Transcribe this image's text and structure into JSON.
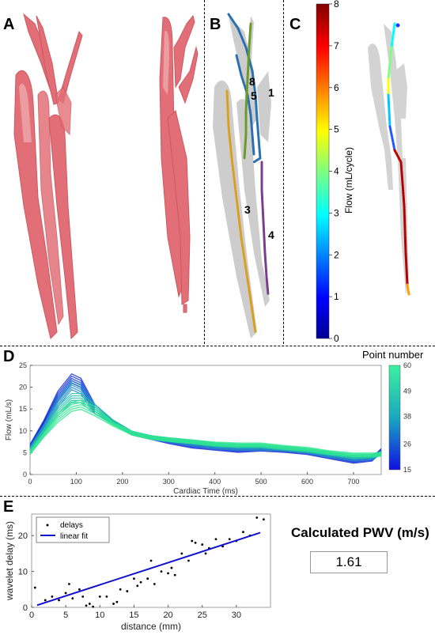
{
  "panels": {
    "a": "A",
    "b": "B",
    "c": "C",
    "d": "D",
    "e": "E"
  },
  "vessel_point_labels": [
    "8",
    "5",
    "1",
    "3",
    "4"
  ],
  "colorbar_flow": {
    "label": "Flow (mL/cycle)",
    "ticks": [
      "0",
      "1",
      "2",
      "3",
      "4",
      "5",
      "6",
      "7",
      "8"
    ],
    "min": 0,
    "max": 8
  },
  "colorbar_points": {
    "title": "Point number",
    "ticks": [
      "60",
      "49",
      "38",
      "26",
      "15"
    ],
    "min": 15,
    "max": 60
  },
  "colors": {
    "vessel_red": "#e0636b",
    "vessel_gray": "#c8c8c8",
    "path_blue": "#2a6fb0",
    "path_green": "#6a9a2a",
    "path_orange": "#d9a01e",
    "path_purple": "#7a3c8c",
    "fit_line": "#1010d0"
  },
  "pwv": {
    "title": "Calculated PWV (m/s)",
    "value": "1.61"
  },
  "chart_data": [
    {
      "type": "line",
      "xlabel": "Cardiac Time (ms)",
      "ylabel": "Flow (mL/s)",
      "xlim": [
        0,
        760
      ],
      "ylim": [
        0,
        25
      ],
      "xticks": [
        "0",
        "100",
        "200",
        "300",
        "400",
        "500",
        "600",
        "700"
      ],
      "yticks": [
        "0",
        "5",
        "10",
        "15",
        "20",
        "25"
      ],
      "grid": false,
      "series": [
        {
          "values": [
            [
              0,
              6.5
            ],
            [
              30,
              12
            ],
            [
              60,
              18
            ],
            [
              90,
              22
            ],
            [
              110,
              21
            ],
            [
              140,
              15
            ],
            [
              180,
              12
            ],
            [
              220,
              9.5
            ],
            [
              260,
              8.5
            ],
            [
              300,
              7.5
            ],
            [
              350,
              6.5
            ],
            [
              400,
              6
            ],
            [
              450,
              5.5
            ],
            [
              500,
              5.8
            ],
            [
              550,
              5.5
            ],
            [
              600,
              5
            ],
            [
              650,
              4
            ],
            [
              700,
              3
            ],
            [
              740,
              3.5
            ],
            [
              760,
              5.5
            ]
          ]
        },
        {
          "values": [
            [
              0,
              6
            ],
            [
              30,
              11
            ],
            [
              60,
              16.5
            ],
            [
              90,
              20.5
            ],
            [
              110,
              19.5
            ],
            [
              140,
              15
            ],
            [
              180,
              12
            ],
            [
              220,
              9.5
            ],
            [
              260,
              8.5
            ],
            [
              300,
              7.8
            ],
            [
              350,
              7
            ],
            [
              400,
              6.3
            ],
            [
              450,
              6
            ],
            [
              500,
              6
            ],
            [
              550,
              5.8
            ],
            [
              600,
              5.3
            ],
            [
              650,
              4.3
            ],
            [
              700,
              3.6
            ],
            [
              740,
              3.8
            ],
            [
              760,
              5
            ]
          ]
        },
        {
          "values": [
            [
              0,
              5.5
            ],
            [
              30,
              10
            ],
            [
              60,
              14.5
            ],
            [
              90,
              17.5
            ],
            [
              110,
              17.5
            ],
            [
              140,
              15
            ],
            [
              180,
              12
            ],
            [
              220,
              9.5
            ],
            [
              260,
              8.5
            ],
            [
              300,
              8
            ],
            [
              350,
              7.5
            ],
            [
              400,
              6.8
            ],
            [
              450,
              6.5
            ],
            [
              500,
              6.5
            ],
            [
              550,
              6
            ],
            [
              600,
              5.5
            ],
            [
              650,
              4.8
            ],
            [
              700,
              4
            ],
            [
              740,
              4.2
            ],
            [
              760,
              4.8
            ]
          ]
        },
        {
          "values": [
            [
              0,
              5
            ],
            [
              30,
              9
            ],
            [
              60,
              13
            ],
            [
              90,
              15.5
            ],
            [
              110,
              16
            ],
            [
              140,
              14.5
            ],
            [
              180,
              11.5
            ],
            [
              220,
              9.5
            ],
            [
              260,
              8.5
            ],
            [
              300,
              8
            ],
            [
              350,
              7.5
            ],
            [
              400,
              7
            ],
            [
              450,
              6.8
            ],
            [
              500,
              6.8
            ],
            [
              550,
              6.2
            ],
            [
              600,
              5.8
            ],
            [
              650,
              5
            ],
            [
              700,
              4.5
            ],
            [
              740,
              4.5
            ],
            [
              760,
              4.6
            ]
          ]
        }
      ]
    },
    {
      "type": "scatter",
      "xlabel": "distance (mm)",
      "ylabel": "wavelet delay (ms)",
      "xlim": [
        0,
        35
      ],
      "ylim": [
        0,
        26
      ],
      "xticks": [
        "0",
        "5",
        "10",
        "15",
        "20",
        "25",
        "30"
      ],
      "yticks": [
        "0",
        "10",
        "20"
      ],
      "legend": {
        "position": "top-left",
        "entries": [
          "delays",
          "linear fit"
        ]
      },
      "series": [
        {
          "name": "delays",
          "x": [
            0.5,
            2,
            3,
            4,
            5,
            5.5,
            6,
            7,
            7.5,
            8,
            8.5,
            9,
            10,
            11,
            12,
            12.5,
            13,
            14,
            15,
            15.5,
            16,
            17,
            17.5,
            18,
            19,
            20,
            20.5,
            21,
            22,
            23,
            23.5,
            24,
            25,
            25.5,
            26,
            27,
            28,
            29,
            30,
            31,
            32,
            33,
            34
          ],
          "y": [
            5.5,
            2,
            3,
            2,
            4,
            6.5,
            2.5,
            5,
            3,
            0.5,
            1,
            0.2,
            3,
            3,
            1,
            1.5,
            5,
            4.5,
            8,
            6,
            7,
            8,
            13,
            6.5,
            10,
            9.5,
            11,
            9,
            15,
            13,
            18.5,
            18,
            17.5,
            15,
            16.5,
            19,
            17,
            19,
            18.5,
            21,
            20,
            25,
            24.5
          ]
        },
        {
          "name": "linear fit",
          "x": [
            0.8,
            33.5
          ],
          "y": [
            0.6,
            20.8
          ]
        }
      ]
    }
  ]
}
